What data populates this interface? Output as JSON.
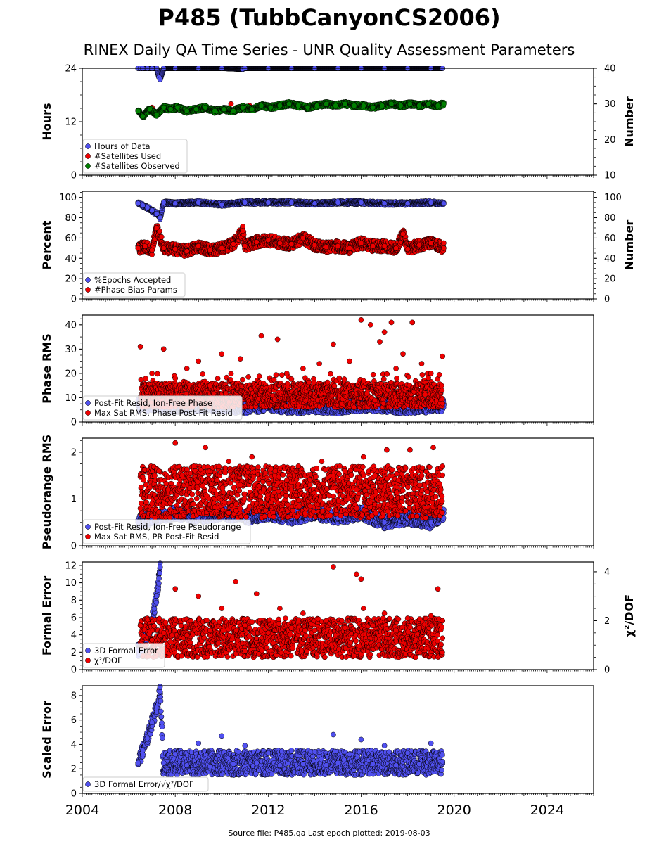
{
  "title": "P485 (TubbCanyonCS2006)",
  "subtitle": "RINEX Daily QA Time Series - UNR Quality Assessment Parameters",
  "footer": "Source file: P485.qa Last epoch plotted: 2019-08-03",
  "colors": {
    "blue": "#5050f0",
    "red": "#ee0000",
    "green": "#008000",
    "edge": "#000000"
  },
  "chart_data": [
    {
      "type": "scatter",
      "panel": "hours",
      "ylabel": "Hours",
      "ylabel_right": "Number",
      "xlim": [
        2004,
        2026
      ],
      "ylim": [
        0,
        24
      ],
      "ylim_right": [
        10,
        40
      ],
      "yticks": [
        0,
        12,
        24
      ],
      "yticks_right": [
        10,
        20,
        30,
        40
      ],
      "legend_position": "lower-left",
      "series": [
        {
          "name": "Hours of Data",
          "color": "blue",
          "axis": "left",
          "x": [
            2006.4,
            2006.5,
            2006.6,
            2006.8,
            2007.0,
            2007.2,
            2007.3,
            2007.35,
            2007.5,
            2008,
            2009,
            2010,
            2010.9,
            2011,
            2012,
            2013,
            2014,
            2015,
            2016,
            2017,
            2018,
            2019,
            2019.5
          ],
          "y": [
            24,
            24,
            24,
            24,
            24,
            24,
            22,
            21.5,
            24,
            24,
            24,
            24,
            23.8,
            24,
            24,
            24,
            24,
            24,
            24,
            24,
            24,
            24,
            24
          ]
        },
        {
          "name": "#Satellites Used",
          "color": "red",
          "axis": "right",
          "x": [
            2007.0,
            2009.0,
            2010.4,
            2011.2
          ],
          "y": [
            29,
            29,
            30,
            29.5
          ]
        },
        {
          "name": "#Satellites Observed",
          "color": "green",
          "axis": "right",
          "x": [
            2006.4,
            2006.6,
            2006.9,
            2007.2,
            2007.5,
            2007.8,
            2008.1,
            2008.5,
            2008.9,
            2009.3,
            2009.7,
            2010.1,
            2010.5,
            2010.9,
            2011.3,
            2011.7,
            2012.1,
            2012.5,
            2012.9,
            2013.3,
            2013.7,
            2014.1,
            2014.5,
            2014.9,
            2015.3,
            2015.7,
            2016.1,
            2016.5,
            2016.9,
            2017.3,
            2017.7,
            2018.1,
            2018.5,
            2018.9,
            2019.3,
            2019.55
          ],
          "y": [
            28,
            26.5,
            28.5,
            27,
            29,
            28.5,
            29,
            28,
            28.5,
            29,
            28,
            28.5,
            28,
            29,
            28.5,
            29.5,
            29,
            29.5,
            30,
            29.5,
            29,
            29.5,
            30,
            29.5,
            30,
            29.5,
            29.5,
            29,
            29.5,
            30,
            29.5,
            30,
            29.5,
            30,
            29.5,
            30
          ]
        }
      ]
    },
    {
      "type": "scatter",
      "panel": "percent",
      "ylabel": "Percent",
      "ylabel_right": "Number",
      "xlim": [
        2004,
        2026
      ],
      "ylim": [
        0,
        106
      ],
      "yticks": [
        0,
        20,
        40,
        60,
        80,
        100
      ],
      "yticks_right": [
        0,
        20,
        40,
        60,
        80,
        100
      ],
      "legend_position": "lower-left",
      "series": [
        {
          "name": "%Epochs Accepted",
          "color": "blue",
          "x": [
            2006.4,
            2006.6,
            2006.8,
            2007.0,
            2007.2,
            2007.35,
            2007.5,
            2008,
            2009,
            2010,
            2011,
            2012,
            2013,
            2014,
            2015,
            2016,
            2017,
            2018,
            2019,
            2019.55
          ],
          "y": [
            94,
            92,
            90,
            87,
            84,
            80,
            95,
            94,
            95,
            93,
            95,
            95,
            95,
            94,
            95,
            95,
            94,
            94,
            95,
            94
          ]
        },
        {
          "name": "#Phase Bias Params",
          "color": "red",
          "x": [
            2006.4,
            2006.7,
            2007.0,
            2007.2,
            2007.5,
            2008,
            2008.5,
            2009,
            2009.5,
            2010,
            2010.5,
            2010.9,
            2011,
            2011.5,
            2012,
            2012.5,
            2013,
            2013.5,
            2014,
            2014.5,
            2015,
            2015.5,
            2016,
            2016.5,
            2017,
            2017.5,
            2017.8,
            2018,
            2018.5,
            2019,
            2019.55
          ],
          "y": [
            50,
            52,
            48,
            70,
            50,
            49,
            47,
            52,
            48,
            50,
            54,
            67,
            52,
            56,
            58,
            55,
            54,
            60,
            53,
            51,
            52,
            50,
            55,
            52,
            52,
            50,
            64,
            49,
            53,
            55,
            50
          ]
        }
      ]
    },
    {
      "type": "scatter",
      "panel": "phase-rms",
      "ylabel": "Phase RMS",
      "xlim": [
        2004,
        2026
      ],
      "ylim": [
        0,
        44
      ],
      "yticks": [
        0,
        10,
        20,
        30,
        40
      ],
      "legend_position": "lower-left",
      "series": [
        {
          "name": "Post-Fit Resid, Ion-Free Phase",
          "color": "blue",
          "x": [
            2006.4,
            2007,
            2008,
            2009,
            2010,
            2011,
            2012,
            2013,
            2014,
            2015,
            2016,
            2017,
            2018,
            2019,
            2019.55
          ],
          "y": [
            7,
            7,
            6.5,
            7,
            6.5,
            6,
            7,
            6,
            6.5,
            6,
            7,
            6.5,
            6,
            6.5,
            7
          ]
        },
        {
          "name": "Max Sat RMS, Phase Post-Fit Resid",
          "color": "red",
          "x": [
            2006.5,
            2007.0,
            2007.5,
            2008.0,
            2008.5,
            2009.0,
            2009.5,
            2010.0,
            2010.8,
            2011.7,
            2012.4,
            2012.8,
            2013.5,
            2014.2,
            2014.8,
            2015.5,
            2016.0,
            2016.1,
            2016.4,
            2016.8,
            2017.0,
            2017.3,
            2017.5,
            2017.8,
            2018.2,
            2018.6,
            2019.0,
            2019.5
          ],
          "y": [
            31,
            20,
            30,
            18,
            22,
            25,
            15,
            28,
            26,
            35.5,
            34,
            20,
            22,
            24,
            32,
            25,
            42,
            17,
            40,
            33,
            37,
            41,
            22,
            28,
            41,
            24,
            20,
            27
          ]
        }
      ]
    },
    {
      "type": "scatter",
      "panel": "pseudorange-rms",
      "ylabel": "Pseudorange RMS",
      "xlim": [
        2004,
        2026
      ],
      "ylim": [
        0,
        2.3
      ],
      "yticks": [
        0,
        1,
        2
      ],
      "legend_position": "lower-left",
      "series": [
        {
          "name": "Post-Fit Resid, Ion-Free Pseudorange",
          "color": "blue",
          "x": [
            2006.4,
            2007,
            2008,
            2009,
            2010,
            2011,
            2012,
            2013,
            2014,
            2015,
            2016,
            2017,
            2018,
            2019,
            2019.55
          ],
          "y": [
            0.5,
            0.6,
            0.7,
            0.6,
            0.7,
            0.6,
            0.7,
            0.6,
            0.7,
            0.6,
            0.7,
            0.5,
            0.6,
            0.5,
            0.7
          ]
        },
        {
          "name": "Max Sat RMS, PR Post-Fit Resid",
          "color": "red",
          "x": [
            2006.5,
            2007.0,
            2007.3,
            2007.7,
            2008.0,
            2008.3,
            2008.8,
            2009.3,
            2009.8,
            2010.3,
            2010.8,
            2011.3,
            2011.8,
            2012.3,
            2012.8,
            2013.3,
            2013.8,
            2014.3,
            2014.8,
            2015.3,
            2015.8,
            2016.1,
            2016.6,
            2017.1,
            2017.6,
            2018.1,
            2018.6,
            2019.1,
            2019.5
          ],
          "y": [
            0.8,
            0.9,
            1.6,
            1.2,
            2.2,
            1.5,
            1.7,
            2.1,
            1.4,
            1.8,
            1.3,
            1.9,
            1.2,
            1.6,
            1.4,
            1.7,
            1.3,
            1.8,
            1.5,
            1.6,
            1.2,
            1.9,
            1.5,
            2.05,
            1.4,
            2.05,
            1.5,
            2.1,
            1.7
          ]
        }
      ]
    },
    {
      "type": "scatter",
      "panel": "formal-error",
      "ylabel": "Formal Error",
      "ylabel_right": "χ²/DOF",
      "xlim": [
        2004,
        2026
      ],
      "ylim": [
        0,
        12.4
      ],
      "ylim_right": [
        0,
        4.4
      ],
      "yticks": [
        0,
        2,
        4,
        6,
        8,
        10,
        12
      ],
      "yticks_right": [
        0,
        2,
        4
      ],
      "legend_position": "lower-left",
      "series": [
        {
          "name": "3D Formal Error",
          "color": "blue",
          "axis": "left",
          "x": [
            2006.4,
            2006.6,
            2006.8,
            2007.0,
            2007.1,
            2007.2,
            2007.3,
            2007.35
          ],
          "y": [
            2.2,
            3.0,
            4.0,
            5.5,
            7.0,
            8.5,
            10.5,
            11.8
          ]
        },
        {
          "name": "χ²/DOF",
          "color": "red",
          "axis": "right",
          "x": [
            2006.5,
            2007.0,
            2007.5,
            2008.0,
            2008.5,
            2009.0,
            2009.5,
            2010.0,
            2010.6,
            2011.0,
            2011.5,
            2012.0,
            2012.5,
            2013.0,
            2013.5,
            2014.0,
            2014.5,
            2014.8,
            2015.3,
            2015.8,
            2016.0,
            2016.1,
            2016.5,
            2017.0,
            2017.5,
            2018.0,
            2018.5,
            2019.0,
            2019.3,
            2019.5
          ],
          "y": [
            1.8,
            1.2,
            1.5,
            3.3,
            1.4,
            3.0,
            1.6,
            2.5,
            3.6,
            1.8,
            3.1,
            1.5,
            2.5,
            1.7,
            2.3,
            1.6,
            2.0,
            4.2,
            1.7,
            3.9,
            3.7,
            2.5,
            1.8,
            2.3,
            1.6,
            2.1,
            1.7,
            2.2,
            3.3,
            2.0
          ]
        }
      ]
    },
    {
      "type": "scatter",
      "panel": "scaled-error",
      "ylabel": "Scaled Error",
      "xlim": [
        2004,
        2026
      ],
      "ylim": [
        0,
        8.8
      ],
      "yticks": [
        0,
        2,
        4,
        6,
        8
      ],
      "legend_position": "lower-left",
      "series": [
        {
          "name": "3D Formal Error/√χ²/DOF",
          "color": "blue",
          "x": [
            2006.4,
            2006.6,
            2006.8,
            2007.0,
            2007.2,
            2007.35,
            2007.5,
            2008,
            2008.5,
            2009,
            2009.5,
            2010,
            2010.5,
            2011,
            2011.5,
            2012,
            2012.5,
            2013,
            2013.5,
            2014,
            2014.5,
            2014.8,
            2015,
            2015.5,
            2016,
            2016.5,
            2017,
            2017.5,
            2018,
            2018.5,
            2019,
            2019.5
          ],
          "y": [
            2.5,
            3.5,
            4.5,
            5.8,
            7.0,
            8.3,
            2.5,
            3.2,
            2.3,
            4.1,
            2.2,
            4.7,
            2.4,
            3.9,
            2.5,
            3.3,
            2.3,
            3.5,
            2.4,
            3.4,
            2.3,
            4.8,
            2.5,
            3.2,
            4.4,
            2.4,
            3.9,
            2.3,
            3.3,
            2.4,
            4.1,
            2.6
          ]
        }
      ]
    }
  ],
  "x_axis": {
    "ticks": [
      "2004",
      "2008",
      "2012",
      "2016",
      "2020",
      "2024"
    ]
  },
  "legends": {
    "hours": [
      "Hours of Data",
      "#Satellites Used",
      "#Satellites Observed"
    ],
    "percent": [
      "%Epochs Accepted",
      "#Phase Bias Params"
    ],
    "phase": [
      "Post-Fit Resid, Ion-Free Phase",
      "Max Sat RMS, Phase Post-Fit Resid"
    ],
    "pseudo": [
      "Post-Fit Resid, Ion-Free Pseudorange",
      "Max Sat RMS, PR Post-Fit Resid"
    ],
    "formal": [
      "3D Formal Error",
      "χ²/DOF"
    ],
    "scaled": [
      "3D Formal Error/√χ²/DOF"
    ]
  }
}
